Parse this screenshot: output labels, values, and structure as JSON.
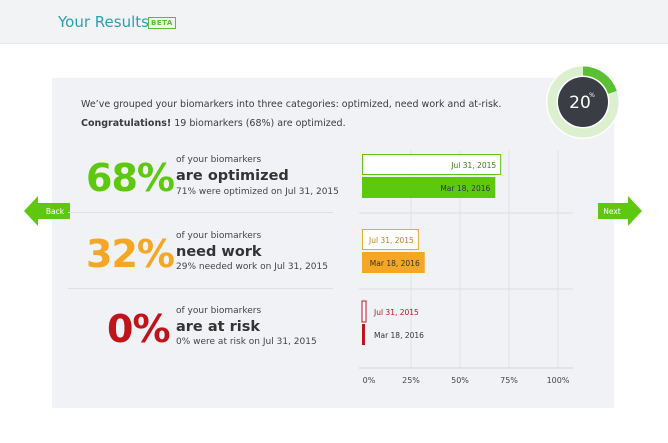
{
  "header": {
    "title": "Your Results",
    "badge": "BETA"
  },
  "intro": {
    "line1": "We’ve grouped your biomarkers into three categories: optimized, need work and at-risk.",
    "line2_bold": "Congratulations!",
    "line2_rest": " 19 biomarkers (68%) are optimized."
  },
  "gauge": {
    "value": "20",
    "unit": "%",
    "fraction": 0.2,
    "ring_color": "#59c130",
    "center_color": "#3b3d45"
  },
  "nav": {
    "back": "Back",
    "next": "Next"
  },
  "categories": [
    {
      "percent": "68%",
      "prefix": "of your biomarkers",
      "label": "are optimized",
      "previous": "71% were optimized on Jul 31, 2015",
      "color": "#5ec80f"
    },
    {
      "percent": "32%",
      "prefix": "of your biomarkers",
      "label": "need work",
      "previous": "29% needed work on Jul 31, 2015",
      "color": "#f5a623"
    },
    {
      "percent": "0%",
      "prefix": "of your biomarkers",
      "label": "are at risk",
      "previous": "0% were at risk on Jul 31, 2015",
      "color": "#c0141b"
    }
  ],
  "chart_data": {
    "type": "bar",
    "orientation": "horizontal",
    "xlim": [
      0,
      100
    ],
    "ticks": [
      "0%",
      "25%",
      "50%",
      "75%",
      "100%"
    ],
    "tick_values": [
      0,
      25,
      50,
      75,
      100
    ],
    "groups": [
      {
        "category": "are optimized",
        "color": "#5ec80f",
        "bars": [
          {
            "label": "Jul 31, 2015",
            "value": 71,
            "style": "outline"
          },
          {
            "label": "Mar 18, 2016",
            "value": 68,
            "style": "filled"
          }
        ]
      },
      {
        "category": "need work",
        "color": "#f5a623",
        "bars": [
          {
            "label": "Jul 31, 2015",
            "value": 29,
            "style": "outline"
          },
          {
            "label": "Mar 18, 2016",
            "value": 32,
            "style": "filled"
          }
        ]
      },
      {
        "category": "are at risk",
        "color": "#c0141b",
        "bars": [
          {
            "label": "Jul 31, 2015",
            "value": 0,
            "style": "outline"
          },
          {
            "label": "Mar 18, 2016",
            "value": 0,
            "style": "filled"
          }
        ]
      }
    ]
  }
}
